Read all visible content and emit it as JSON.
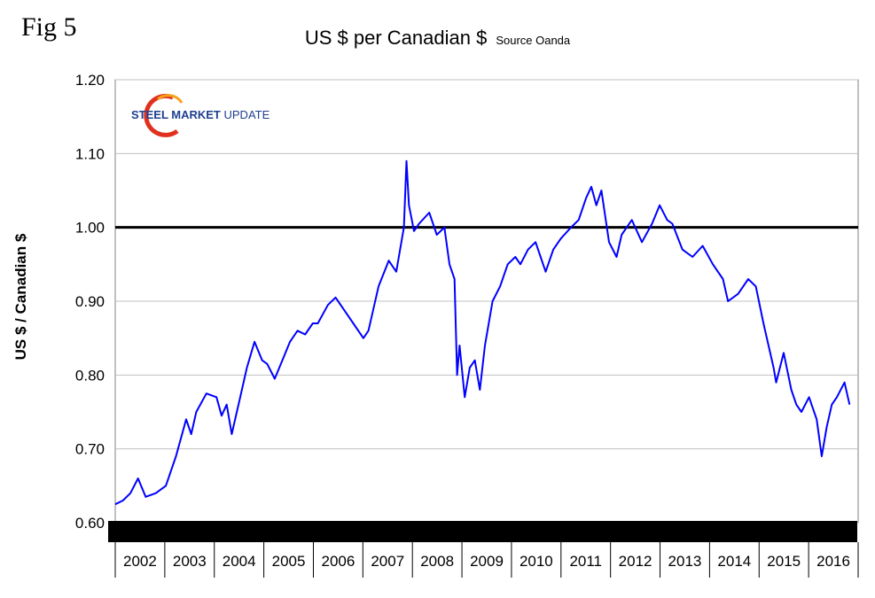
{
  "figure_label": "Fig 5",
  "logo": {
    "text_bold": "STEEL MARKET",
    "text_light": " UPDATE"
  },
  "chart_data": {
    "type": "line",
    "title": "US $ per Canadian $",
    "subtitle": "Source Oanda",
    "xlabel": "",
    "ylabel": "US $ / Canadian $",
    "ylim": [
      0.6,
      1.2
    ],
    "yticks": [
      "1.20",
      "1.10",
      "1.00",
      "0.90",
      "0.80",
      "0.70",
      "0.60"
    ],
    "ytick_values": [
      1.2,
      1.1,
      1.0,
      0.9,
      0.8,
      0.7,
      0.6
    ],
    "xlim": [
      2002.0,
      2016.67
    ],
    "categories": [
      "2002",
      "2003",
      "2004",
      "2005",
      "2006",
      "2007",
      "2008",
      "2009",
      "2010",
      "2011",
      "2012",
      "2013",
      "2014",
      "2015",
      "2016"
    ],
    "reference_line": {
      "value": 1.0,
      "color": "#000000"
    },
    "grid": true,
    "series": [
      {
        "name": "US $ per Canadian $",
        "color": "#0000ff",
        "x": [
          2002.0,
          2002.15,
          2002.3,
          2002.45,
          2002.6,
          2002.8,
          2003.0,
          2003.2,
          2003.4,
          2003.5,
          2003.6,
          2003.8,
          2004.0,
          2004.1,
          2004.2,
          2004.3,
          2004.45,
          2004.6,
          2004.75,
          2004.9,
          2005.0,
          2005.15,
          2005.3,
          2005.45,
          2005.6,
          2005.75,
          2005.9,
          2006.0,
          2006.2,
          2006.35,
          2006.5,
          2006.7,
          2006.9,
          2007.0,
          2007.2,
          2007.4,
          2007.55,
          2007.7,
          2007.75,
          2007.8,
          2007.9,
          2008.0,
          2008.2,
          2008.35,
          2008.5,
          2008.6,
          2008.7,
          2008.75,
          2008.8,
          2008.9,
          2009.0,
          2009.1,
          2009.2,
          2009.3,
          2009.45,
          2009.6,
          2009.75,
          2009.9,
          2010.0,
          2010.15,
          2010.3,
          2010.4,
          2010.5,
          2010.65,
          2010.8,
          2011.0,
          2011.15,
          2011.3,
          2011.4,
          2011.5,
          2011.6,
          2011.75,
          2011.9,
          2012.0,
          2012.2,
          2012.4,
          2012.6,
          2012.75,
          2012.9,
          2013.0,
          2013.2,
          2013.4,
          2013.6,
          2013.8,
          2014.0,
          2014.1,
          2014.3,
          2014.5,
          2014.65,
          2014.8,
          2014.9,
          2015.0,
          2015.05,
          2015.2,
          2015.35,
          2015.45,
          2015.55,
          2015.7,
          2015.85,
          2015.95,
          2016.05,
          2016.15,
          2016.25,
          2016.4,
          2016.5
        ],
        "y": [
          0.625,
          0.63,
          0.64,
          0.66,
          0.635,
          0.64,
          0.65,
          0.69,
          0.74,
          0.72,
          0.75,
          0.775,
          0.77,
          0.745,
          0.76,
          0.72,
          0.765,
          0.81,
          0.845,
          0.82,
          0.815,
          0.795,
          0.82,
          0.845,
          0.86,
          0.855,
          0.87,
          0.87,
          0.895,
          0.905,
          0.89,
          0.87,
          0.85,
          0.86,
          0.92,
          0.955,
          0.94,
          1.0,
          1.09,
          1.03,
          0.995,
          1.005,
          1.02,
          0.99,
          1.0,
          0.95,
          0.93,
          0.8,
          0.84,
          0.77,
          0.81,
          0.82,
          0.78,
          0.84,
          0.9,
          0.92,
          0.95,
          0.96,
          0.95,
          0.97,
          0.98,
          0.96,
          0.94,
          0.97,
          0.985,
          1.0,
          1.01,
          1.04,
          1.055,
          1.03,
          1.05,
          0.98,
          0.96,
          0.99,
          1.01,
          0.98,
          1.005,
          1.03,
          1.01,
          1.005,
          0.97,
          0.96,
          0.975,
          0.95,
          0.93,
          0.9,
          0.91,
          0.93,
          0.92,
          0.87,
          0.84,
          0.81,
          0.79,
          0.83,
          0.78,
          0.76,
          0.75,
          0.77,
          0.74,
          0.69,
          0.73,
          0.76,
          0.77,
          0.79,
          0.76
        ]
      }
    ]
  }
}
